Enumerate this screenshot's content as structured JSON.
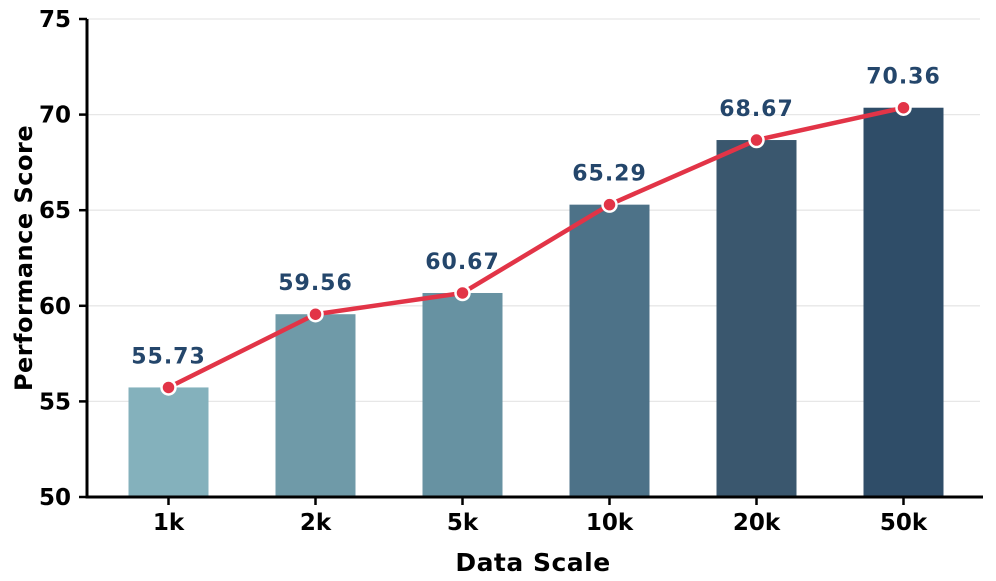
{
  "chart_data": {
    "type": "bar",
    "overlay": "line",
    "title": "",
    "xlabel": "Data Scale",
    "ylabel": "Performance Score",
    "categories": [
      "1k",
      "2k",
      "5k",
      "10k",
      "20k",
      "50k"
    ],
    "values": [
      55.73,
      59.56,
      60.67,
      65.29,
      68.67,
      70.36
    ],
    "value_labels": [
      "55.73",
      "59.56",
      "60.67",
      "65.29",
      "68.67",
      "70.36"
    ],
    "ylim": [
      50,
      75
    ],
    "yticks": [
      50,
      55,
      60,
      65,
      70,
      75
    ],
    "grid": true,
    "legend": "none",
    "colors": {
      "bars": [
        "#84b1bc",
        "#6f9aa8",
        "#6792a2",
        "#4d7288",
        "#3a576e",
        "#2f4d68"
      ],
      "line": "#e23447",
      "marker_fill": "#e23447",
      "marker_edge": "#ffffff",
      "value_label": "#24466b",
      "grid": "#e7e7e7",
      "axis": "#000000",
      "tick_label": "#000000",
      "background": "#ffffff"
    }
  }
}
